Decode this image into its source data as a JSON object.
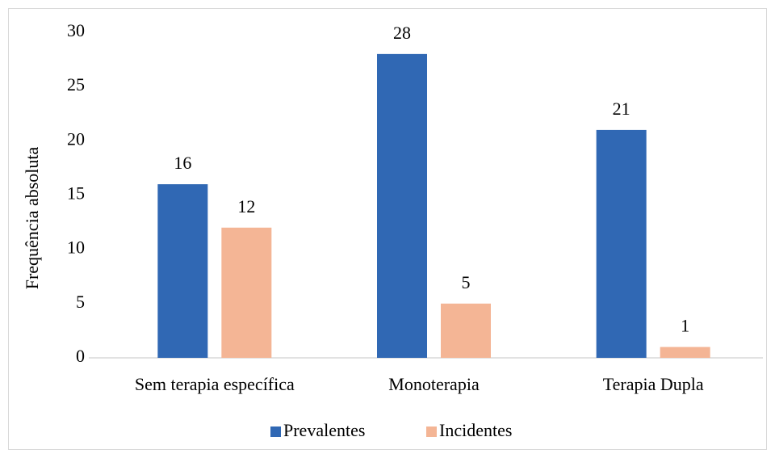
{
  "chart_data": {
    "type": "bar",
    "y_label": "Frequência absoluta",
    "categories": [
      "Sem terapia específica",
      "Monoterapia",
      "Terapia Dupla"
    ],
    "series": [
      {
        "name": "Prevalentes",
        "color": "#3068b4",
        "values": [
          16,
          28,
          21
        ]
      },
      {
        "name": "Incidentes",
        "color": "#f4b595",
        "values": [
          12,
          5,
          1
        ]
      }
    ],
    "ylim": [
      0,
      30
    ],
    "yticks": [
      0,
      5,
      10,
      15,
      20,
      25,
      30
    ],
    "grid": false,
    "legend": "bottom"
  }
}
